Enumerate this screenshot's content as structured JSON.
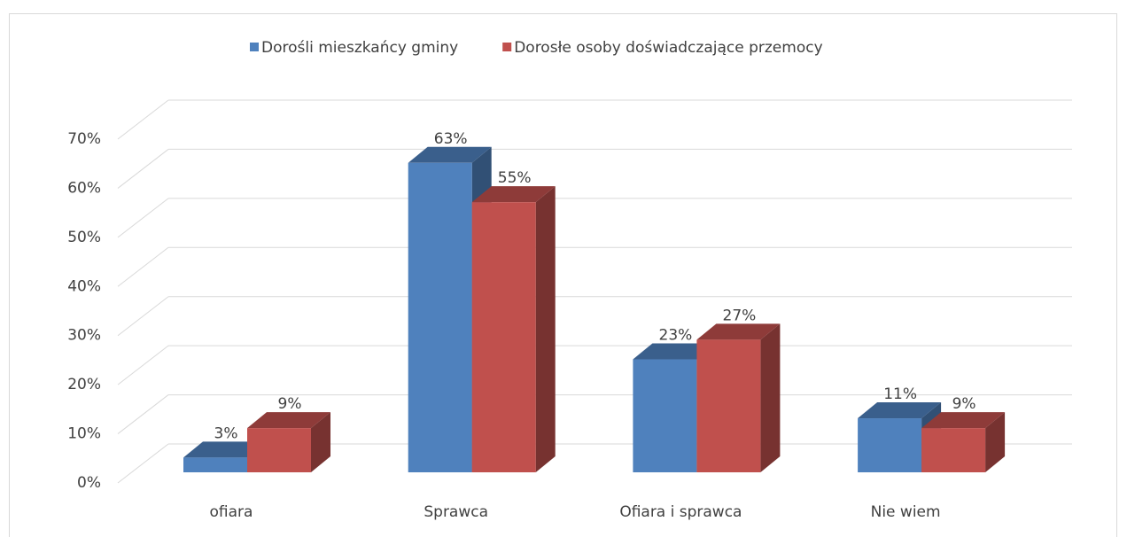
{
  "chart_data": {
    "type": "bar3d",
    "categories": [
      "ofiara",
      "Sprawca",
      "Ofiara i sprawca",
      "Nie wiem"
    ],
    "series": [
      {
        "name": "Dorośli mieszkańcy gminy",
        "color": "#4f81bd",
        "values": [
          3,
          63,
          23,
          11
        ],
        "value_labels": [
          "3%",
          "63%",
          "23%",
          "11%"
        ]
      },
      {
        "name": "Dorosłe osoby doświadczające przemocy",
        "color": "#c0504d",
        "values": [
          9,
          55,
          27,
          9
        ],
        "value_labels": [
          "9%",
          "55%",
          "27%",
          "9%"
        ]
      }
    ],
    "ylim": [
      0,
      70
    ],
    "yticks": [
      {
        "value": 0,
        "label": "0%"
      },
      {
        "value": 10,
        "label": "10%"
      },
      {
        "value": 20,
        "label": "20%"
      },
      {
        "value": 30,
        "label": "30%"
      },
      {
        "value": 40,
        "label": "40%"
      },
      {
        "value": 50,
        "label": "50%"
      },
      {
        "value": 60,
        "label": "60%"
      },
      {
        "value": 70,
        "label": "70%"
      }
    ],
    "grid": true,
    "legend": "top"
  }
}
